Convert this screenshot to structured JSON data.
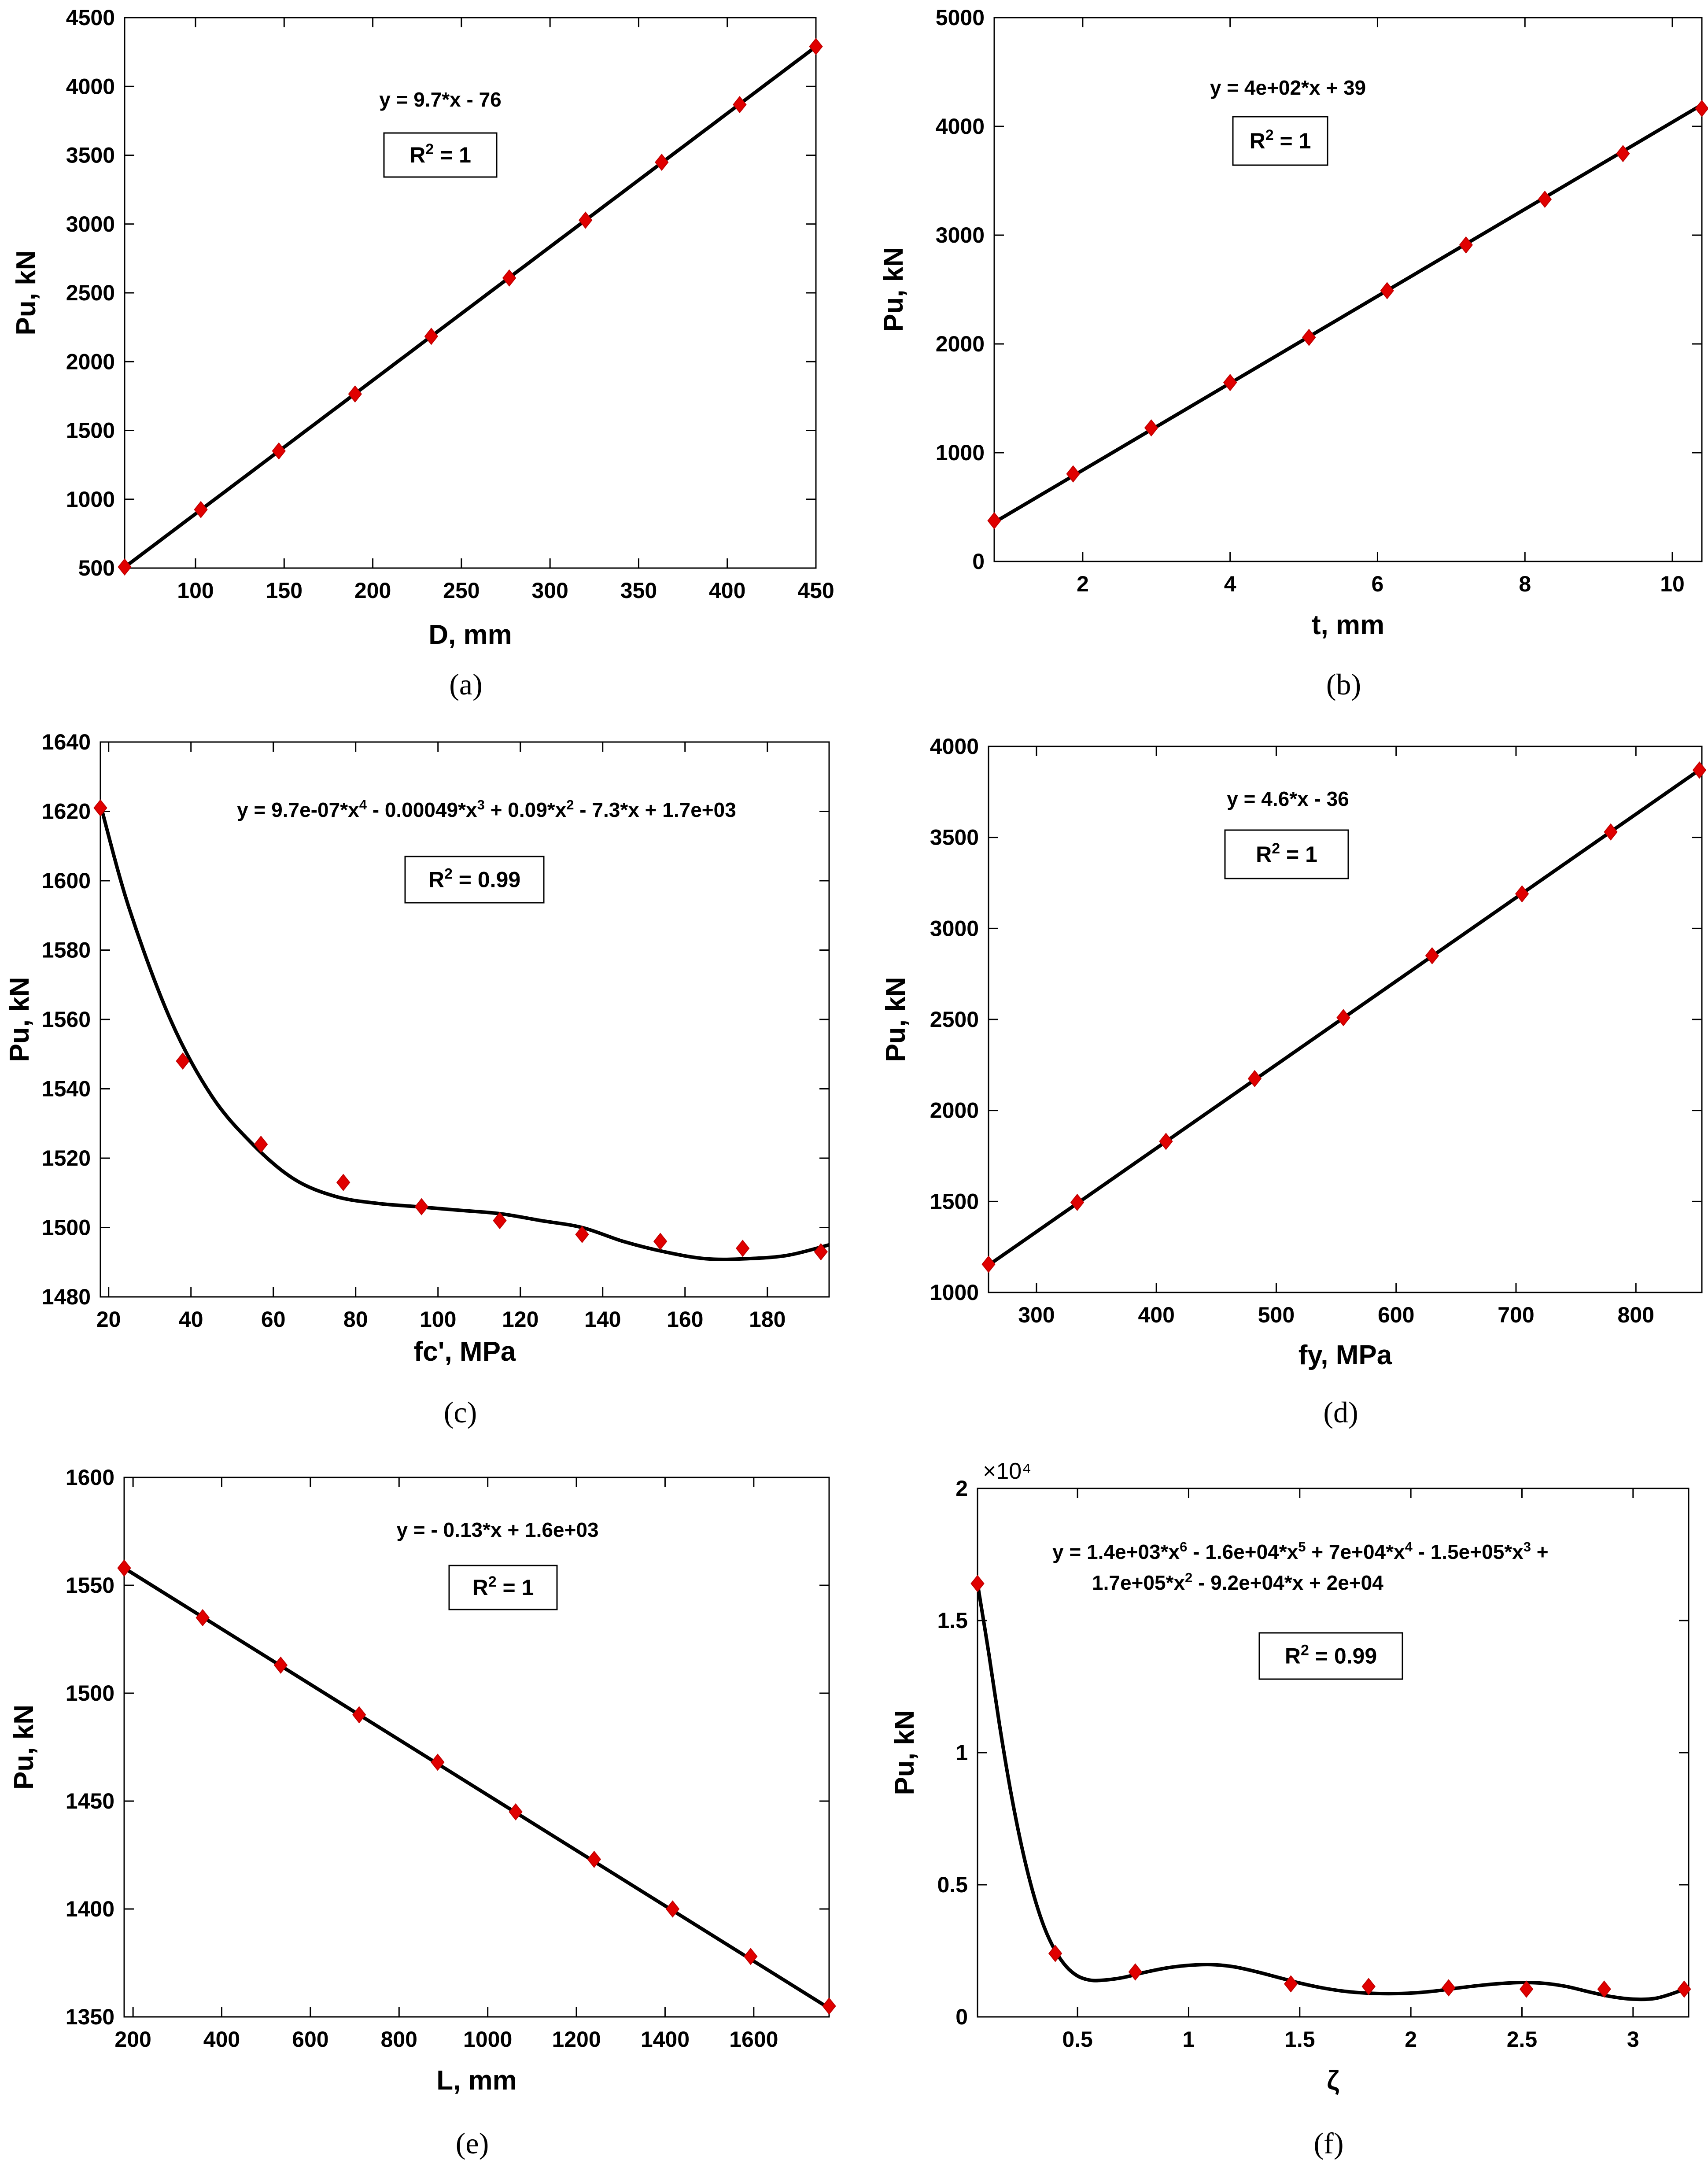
{
  "chart_data": [
    {
      "type": "scatter",
      "panel_label": "(a)",
      "xlabel": "D, mm",
      "ylabel": "Pu, kN",
      "xlim": [
        60,
        450
      ],
      "ylim": [
        500,
        4500
      ],
      "xticks": [
        100,
        150,
        200,
        250,
        300,
        350,
        400,
        450
      ],
      "yticks": [
        500,
        1000,
        1500,
        2000,
        2500,
        3000,
        3500,
        4000,
        4500
      ],
      "equation_lines": [
        "y = 9.7*x - 76"
      ],
      "r2": "R² = 1",
      "fit": {
        "kind": "poly",
        "coeffs": [
          -76,
          9.7
        ]
      },
      "series": [
        {
          "name": "data",
          "x": [
            60,
            103,
            147,
            190,
            233,
            277,
            320,
            363,
            407,
            450
          ],
          "y": [
            508,
            925,
            1351,
            1765,
            2184,
            2608,
            3028,
            3449,
            3868,
            4290
          ]
        }
      ]
    },
    {
      "type": "scatter",
      "panel_label": "(b)",
      "xlabel": "t, mm",
      "ylabel": "Pu, kN",
      "xlim": [
        0.8,
        10.4
      ],
      "ylim": [
        0,
        5000
      ],
      "xticks": [
        2,
        4,
        6,
        8,
        10
      ],
      "yticks": [
        0,
        1000,
        2000,
        3000,
        4000,
        5000
      ],
      "equation_lines": [
        "y = 4e+02*x + 39"
      ],
      "r2": "R² = 1",
      "fit": {
        "kind": "poly",
        "coeffs": [
          39,
          400
        ]
      },
      "series": [
        {
          "name": "data",
          "x": [
            0.8,
            1.87,
            2.93,
            4.0,
            5.07,
            6.13,
            7.2,
            8.27,
            9.33,
            10.4
          ],
          "y": [
            375,
            805,
            1228,
            1645,
            2060,
            2490,
            2910,
            3330,
            3750,
            4165
          ]
        }
      ]
    },
    {
      "type": "scatter",
      "panel_label": "(c)",
      "xlabel": "fc', MPa",
      "ylabel": "Pu, kN",
      "xlim": [
        18,
        195
      ],
      "ylim": [
        1480,
        1640
      ],
      "xticks": [
        20,
        40,
        60,
        80,
        100,
        120,
        140,
        160,
        180
      ],
      "yticks": [
        1480,
        1500,
        1520,
        1540,
        1560,
        1580,
        1600,
        1620,
        1640
      ],
      "equation_lines": [
        "y = 9.7e-07*x⁴ - 0.00049*x³ + 0.09*x² - 7.3*x + 1.7e+03"
      ],
      "r2": "R² = 0.99",
      "fit": {
        "kind": "points",
        "x": [
          18,
          25,
          35,
          45,
          55,
          65,
          75,
          85,
          95,
          105,
          115,
          125,
          135,
          145,
          155,
          165,
          175,
          185,
          195
        ],
        "y": [
          1622,
          1592,
          1560,
          1538,
          1524,
          1514,
          1509,
          1507,
          1506,
          1505,
          1504,
          1502,
          1500,
          1496,
          1493,
          1491,
          1491,
          1492,
          1495
        ]
      },
      "series": [
        {
          "name": "data",
          "x": [
            18,
            38,
            57,
            77,
            96,
            115,
            135,
            154,
            174,
            193
          ],
          "y": [
            1621,
            1548,
            1524,
            1513,
            1506,
            1502,
            1498,
            1496,
            1494,
            1493
          ]
        }
      ]
    },
    {
      "type": "scatter",
      "panel_label": "(d)",
      "xlabel": "fy, MPa",
      "ylabel": "Pu, kN",
      "xlim": [
        260,
        855
      ],
      "ylim": [
        1000,
        4000
      ],
      "xticks": [
        300,
        400,
        500,
        600,
        700,
        800
      ],
      "yticks": [
        1000,
        1500,
        2000,
        2500,
        3000,
        3500,
        4000
      ],
      "equation_lines": [
        "y = 4.6*x - 36"
      ],
      "r2": "R² = 1",
      "fit": {
        "kind": "points",
        "x": [
          260,
          855
        ],
        "y": [
          1150,
          3880
        ]
      },
      "series": [
        {
          "name": "data",
          "x": [
            260,
            334,
            408,
            482,
            556,
            630,
            705,
            779,
            853
          ],
          "y": [
            1155,
            1495,
            1830,
            2175,
            2510,
            2850,
            3190,
            3530,
            3870
          ]
        }
      ]
    },
    {
      "type": "scatter",
      "panel_label": "(e)",
      "xlabel": "L, mm",
      "ylabel": "Pu, kN",
      "xlim": [
        180,
        1770
      ],
      "ylim": [
        1350,
        1600
      ],
      "xticks": [
        200,
        400,
        600,
        800,
        1000,
        1200,
        1400,
        1600
      ],
      "yticks": [
        1350,
        1400,
        1450,
        1500,
        1550,
        1600
      ],
      "equation_lines": [
        "y = - 0.13*x + 1.6e+03"
      ],
      "r2": "R² = 1",
      "fit": {
        "kind": "points",
        "x": [
          180,
          1770
        ],
        "y": [
          1558,
          1354
        ]
      },
      "series": [
        {
          "name": "data",
          "x": [
            180,
            357,
            533,
            710,
            887,
            1063,
            1240,
            1417,
            1593,
            1770
          ],
          "y": [
            1558,
            1535,
            1513,
            1490,
            1468,
            1445,
            1423,
            1400,
            1378,
            1355
          ]
        }
      ]
    },
    {
      "type": "scatter",
      "panel_label": "(f)",
      "xlabel": "ζ",
      "ylabel": "Pu, kN",
      "axis_exponent": "×10⁴",
      "xlim": [
        0.05,
        3.25
      ],
      "ylim": [
        0,
        2
      ],
      "xticks": [
        0.5,
        1,
        1.5,
        2,
        2.5,
        3
      ],
      "yticks": [
        0,
        0.5,
        1,
        1.5,
        2
      ],
      "equation_lines": [
        "y = 1.4e+03*x⁶ - 1.6e+04*x⁵ + 7e+04*x⁴ - 1.5e+05*x³ +",
        "1.7e+05*x² - 9.2e+04*x + 2e+04"
      ],
      "r2": "R² = 0.99",
      "fit": {
        "kind": "points",
        "x": [
          0.05,
          0.1,
          0.15,
          0.2,
          0.25,
          0.3,
          0.35,
          0.4,
          0.45,
          0.5,
          0.55,
          0.6,
          0.7,
          0.8,
          0.9,
          1.0,
          1.1,
          1.2,
          1.3,
          1.4,
          1.5,
          1.6,
          1.7,
          1.8,
          1.9,
          2.0,
          2.1,
          2.2,
          2.3,
          2.4,
          2.5,
          2.6,
          2.7,
          2.8,
          2.9,
          3.0,
          3.1,
          3.2,
          3.25
        ],
        "y": [
          1.64,
          1.38,
          1.1,
          0.85,
          0.64,
          0.47,
          0.34,
          0.25,
          0.19,
          0.155,
          0.14,
          0.138,
          0.148,
          0.168,
          0.185,
          0.195,
          0.198,
          0.19,
          0.172,
          0.15,
          0.128,
          0.11,
          0.097,
          0.09,
          0.088,
          0.09,
          0.097,
          0.108,
          0.118,
          0.126,
          0.13,
          0.127,
          0.115,
          0.095,
          0.077,
          0.067,
          0.07,
          0.095,
          0.115
        ]
      },
      "series": [
        {
          "name": "data",
          "x": [
            0.05,
            0.4,
            0.76,
            1.46,
            1.81,
            2.17,
            2.52,
            2.87,
            3.23
          ],
          "y": [
            1.64,
            0.24,
            0.17,
            0.125,
            0.115,
            0.11,
            0.105,
            0.105,
            0.105
          ]
        }
      ]
    }
  ]
}
